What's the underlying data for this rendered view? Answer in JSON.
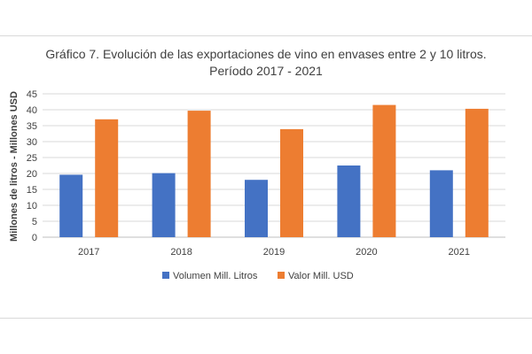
{
  "chart_data": {
    "type": "bar",
    "title_line1": "Gráfico 7. Evolución de las exportaciones de vino en envases entre 2 y 10 litros.",
    "title_line2": "Período 2017 - 2021",
    "xlabel": "",
    "ylabel": "Millones de litros - Millones USD",
    "ylim": [
      0,
      45
    ],
    "yticks": [
      0,
      5,
      10,
      15,
      20,
      25,
      30,
      35,
      40,
      45
    ],
    "grid": true,
    "legend_position": "bottom",
    "categories": [
      "2017",
      "2018",
      "2019",
      "2020",
      "2021"
    ],
    "series": [
      {
        "name": "Volumen Mill. Litros",
        "color": "#4472c4",
        "values": [
          19.6,
          20.1,
          18.0,
          22.5,
          21.0
        ]
      },
      {
        "name": "Valor Mill. USD",
        "color": "#ed7d31",
        "values": [
          37.0,
          39.7,
          33.9,
          41.5,
          40.3
        ]
      }
    ]
  }
}
